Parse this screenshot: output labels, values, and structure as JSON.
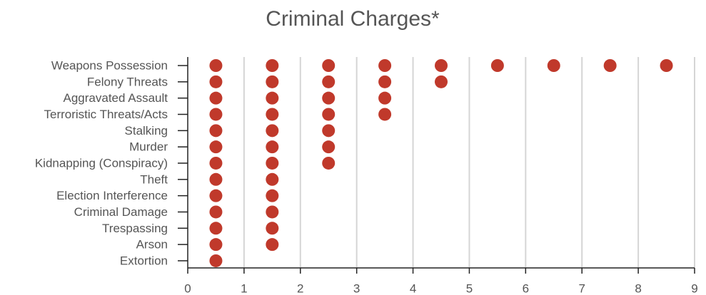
{
  "chart_data": {
    "type": "dot",
    "title": "Criminal Charges*",
    "categories": [
      "Weapons Possession",
      "Felony Threats",
      "Aggravated Assault",
      "Terroristic Threats/Acts",
      "Stalking",
      "Murder",
      "Kidnapping (Conspiracy)",
      "Theft",
      "Election Interference",
      "Criminal Damage",
      "Trespassing",
      "Arson",
      "Extortion"
    ],
    "values": [
      9,
      5,
      4,
      4,
      3,
      3,
      3,
      2,
      2,
      2,
      2,
      2,
      1
    ],
    "color": "#c0392b",
    "xlim": [
      0,
      9
    ],
    "xticks": [
      0,
      1,
      2,
      3,
      4,
      5,
      6,
      7,
      8,
      9
    ],
    "grid": true
  }
}
